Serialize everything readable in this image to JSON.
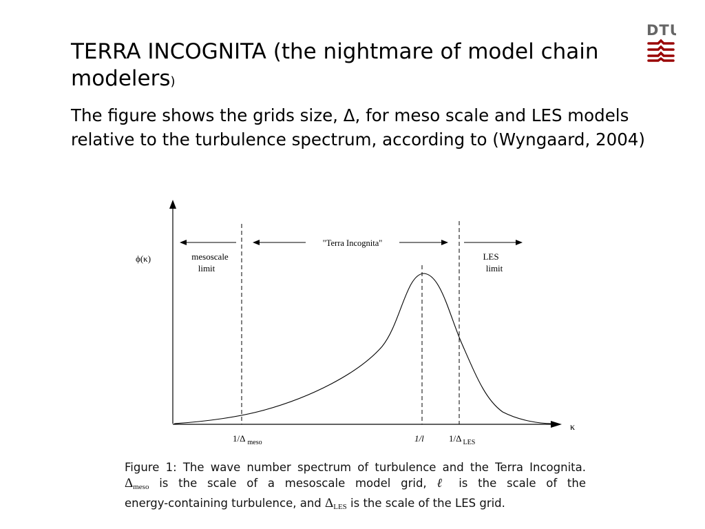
{
  "slide": {
    "title_main": "TERRA INCOGNITA (the nightmare of model chain modelers",
    "title_paren": ")",
    "body": "The figure shows the grids size, Δ, for  meso scale  and LES models relative to  the turbulence spectrum, according to (Wyngaard, 2004)"
  },
  "logo": {
    "text": "DTU",
    "color": "#990000"
  },
  "figure": {
    "y_axis_label": "ϕ(κ)",
    "x_axis_label": "κ",
    "left_region_label_1": "mesoscale",
    "left_region_label_2": "limit",
    "middle_region_label": "\"Terra Incognita\"",
    "right_region_label_1": "LES",
    "right_region_label_2": "limit",
    "tick_meso_main": "1/Δ",
    "tick_meso_sub": "meso",
    "tick_l": "1/l",
    "tick_les_main": "1/Δ",
    "tick_les_sub": "LES"
  },
  "caption": {
    "l1_a": "Figure 1:  The wave number spectrum of turbulence and the Terra Incognita.",
    "l2_sym": "Δ",
    "l2_sub": "meso",
    "l2_a": " is the scale of a mesoscale model grid, ",
    "l2_ell": "ℓ",
    "l2_b": " is the scale of the",
    "l3_a": "energy-containing turbulence, and ",
    "l3_sym": "Δ",
    "l3_sub": "LES",
    "l3_b": " is the scale of the LES grid."
  }
}
